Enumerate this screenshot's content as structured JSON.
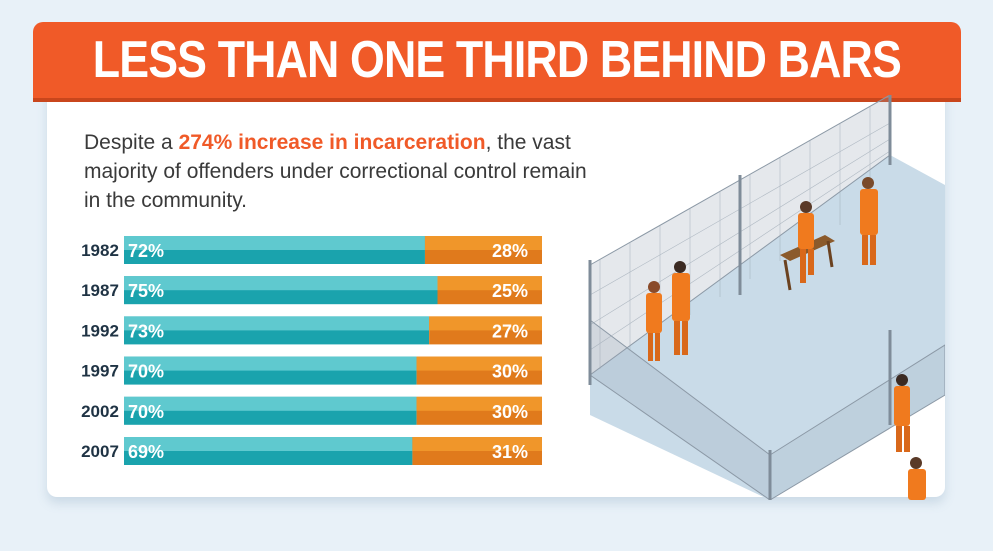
{
  "header": {
    "title": "LESS THAN ONE THIRD BEHIND BARS"
  },
  "intro": {
    "prefix": "Despite a ",
    "highlight": "274% increase in incarceration",
    "suffix": ", the vast majority of offenders under correctional control remain in the community."
  },
  "colors": {
    "teal": "#1aa3ad",
    "teal_light": "#5fc9cf",
    "orange": "#f0962a",
    "orange_dark": "#e07a1c",
    "accent": "#f05a28"
  },
  "chart_data": {
    "type": "bar",
    "stacked": true,
    "orientation": "horizontal",
    "categories": [
      "1982",
      "1987",
      "1992",
      "1997",
      "2002",
      "2007"
    ],
    "series": [
      {
        "values": [
          72,
          75,
          73,
          70,
          70,
          69
        ],
        "labels": [
          "72%",
          "75%",
          "73%",
          "70%",
          "70%",
          "69%"
        ]
      },
      {
        "values": [
          28,
          25,
          27,
          30,
          30,
          31
        ],
        "labels": [
          "28%",
          "25%",
          "27%",
          "30%",
          "30%",
          "31%"
        ]
      }
    ],
    "xlim": [
      0,
      100
    ]
  }
}
